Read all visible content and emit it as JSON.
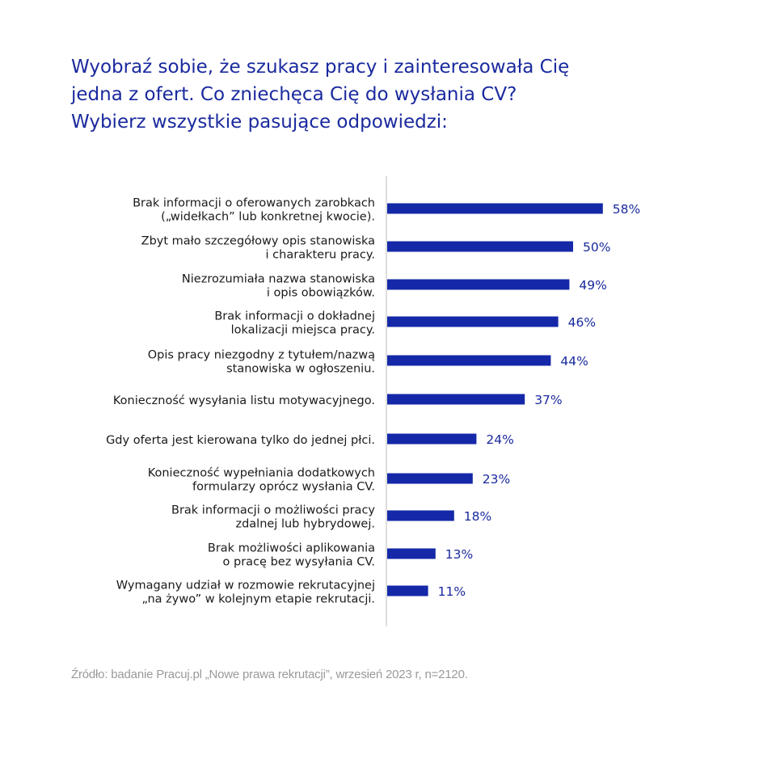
{
  "title_lines": [
    "Wyobraź sobie, że szukasz pracy i zainteresowała Cię",
    "jedna z ofert. Co zniechęca Cię do wysłania CV?",
    "Wybierz wszystkie pasujące odpowiedzi:"
  ],
  "source": "Źródło: badanie Pracuj.pl „Nowe prawa rekrutacji”, wrzesień 2023 r, n=2120.",
  "colors": {
    "bar": "#1428a8",
    "value_label": "#1a2a9e",
    "category_label": "#1a1a1a",
    "axis": "#bbbbbb"
  },
  "chart_data": {
    "type": "bar",
    "orientation": "horizontal",
    "categories": [
      [
        "Brak informacji o oferowanych zarobkach",
        "(„widełkach” lub konkretnej kwocie)."
      ],
      [
        "Zbyt mało szczegółowy opis stanowiska",
        "i charakteru pracy."
      ],
      [
        "Niezrozumiała nazwa stanowiska",
        "i opis obowiązków."
      ],
      [
        "Brak informacji o dokładnej",
        "lokalizacji miejsca pracy."
      ],
      [
        "Opis pracy niezgodny z tytułem/nazwą",
        "stanowiska w ogłoszeniu."
      ],
      [
        "Konieczność wysyłania listu motywacyjnego."
      ],
      [
        "Gdy oferta jest kierowana tylko do jednej płci."
      ],
      [
        "Konieczność wypełniania dodatkowych",
        "formularzy oprócz wysłania CV."
      ],
      [
        "Brak informacji o możliwości pracy",
        "zdalnej lub hybrydowej."
      ],
      [
        "Brak możliwości aplikowania",
        "o pracę bez wysyłania CV."
      ],
      [
        "Wymagany udział w rozmowie rekrutacyjnej",
        "„na żywo” w kolejnym etapie rekrutacji."
      ]
    ],
    "values": [
      58,
      50,
      49,
      46,
      44,
      37,
      24,
      23,
      18,
      13,
      11
    ],
    "value_labels": [
      "58%",
      "50%",
      "49%",
      "46%",
      "44%",
      "37%",
      "24%",
      "23%",
      "18%",
      "13%",
      "11%"
    ],
    "unit": "%",
    "xlim": [
      0,
      100
    ],
    "grid": false,
    "legend": "none"
  }
}
